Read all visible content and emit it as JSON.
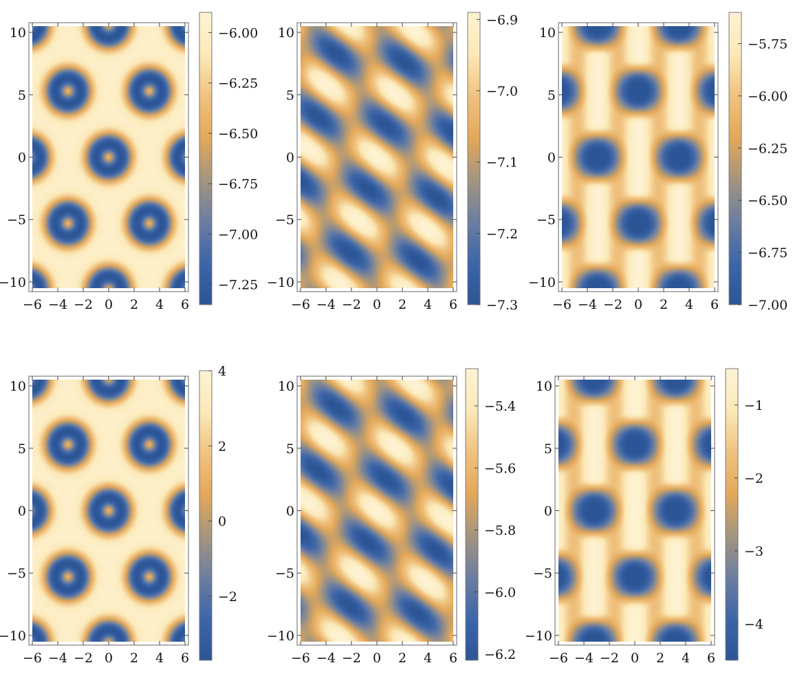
{
  "colormap": {
    "name": "sandy-terrain-like",
    "stops": [
      "#2c5596",
      "#3d66a8",
      "#6d7ea0",
      "#a4957f",
      "#e3a85a",
      "#efc27f",
      "#fce9b8",
      "#fdf3d3"
    ]
  },
  "chart_data": [
    {
      "type": "heatmap",
      "panel": 1,
      "xlim": [
        -6,
        6
      ],
      "ylim": [
        -10.5,
        10.5
      ],
      "xticks": [
        -6,
        -4,
        -2,
        0,
        2,
        4,
        6
      ],
      "yticks": [
        -10,
        -5,
        0,
        5,
        10
      ],
      "colorbar": {
        "min": -7.35,
        "max": -5.9,
        "ticks": [
          -6.0,
          -6.25,
          -6.5,
          -6.75,
          -7.0,
          -7.25
        ],
        "tick_labels": [
          "−6.00",
          "−6.25",
          "−6.50",
          "−6.75",
          "−7.00",
          "−7.25"
        ]
      },
      "pattern": "rings"
    },
    {
      "type": "heatmap",
      "panel": 2,
      "xlim": [
        -6,
        6
      ],
      "ylim": [
        -10.5,
        10.5
      ],
      "xticks": [
        -6,
        -4,
        -2,
        0,
        2,
        4,
        6
      ],
      "yticks": [
        -10,
        -5,
        0,
        5,
        10
      ],
      "colorbar": {
        "min": -7.3,
        "max": -6.89,
        "ticks": [
          -6.9,
          -7.0,
          -7.1,
          -7.2,
          -7.3
        ],
        "tick_labels": [
          "−6.9",
          "−7.0",
          "−7.1",
          "−7.2",
          "−7.3"
        ]
      },
      "pattern": "diagonal"
    },
    {
      "type": "heatmap",
      "panel": 3,
      "xlim": [
        -6,
        6
      ],
      "ylim": [
        -10.5,
        10.5
      ],
      "xticks": [
        -6,
        -4,
        -2,
        0,
        2,
        4,
        6
      ],
      "yticks": [
        -10,
        -5,
        0,
        5,
        10
      ],
      "colorbar": {
        "min": -7.0,
        "max": -5.6,
        "ticks": [
          -5.75,
          -6.0,
          -6.25,
          -6.5,
          -6.75,
          -7.0
        ],
        "tick_labels": [
          "−5.75",
          "−6.00",
          "−6.25",
          "−6.50",
          "−6.75",
          "−7.00"
        ]
      },
      "pattern": "dots"
    },
    {
      "type": "heatmap",
      "panel": 4,
      "xlim": [
        -6,
        6
      ],
      "ylim": [
        -10.5,
        10.5
      ],
      "xticks": [
        -6,
        -4,
        -2,
        0,
        2,
        4,
        6
      ],
      "yticks": [
        -10,
        -5,
        0,
        5,
        10
      ],
      "colorbar": {
        "min": -3.7,
        "max": 4.0,
        "ticks": [
          4,
          2,
          0,
          -2
        ],
        "tick_labels": [
          "4",
          "2",
          "0",
          "−2"
        ]
      },
      "pattern": "rings"
    },
    {
      "type": "heatmap",
      "panel": 5,
      "xlim": [
        -6,
        6
      ],
      "ylim": [
        -10.5,
        10.5
      ],
      "xticks": [
        -6,
        -4,
        -2,
        0,
        2,
        4,
        6
      ],
      "yticks": [
        -10,
        -5,
        0,
        5,
        10
      ],
      "colorbar": {
        "min": -6.22,
        "max": -5.28,
        "ticks": [
          -5.4,
          -5.6,
          -5.8,
          -6.0,
          -6.2
        ],
        "tick_labels": [
          "−5.4",
          "−5.6",
          "−5.8",
          "−6.0",
          "−6.2"
        ]
      },
      "pattern": "diagonal"
    },
    {
      "type": "heatmap",
      "panel": 6,
      "xlim": [
        -6,
        6
      ],
      "ylim": [
        -10.5,
        10.5
      ],
      "xticks": [
        -6,
        -4,
        -2,
        0,
        2,
        4,
        6
      ],
      "yticks": [
        -10,
        -5,
        0,
        5,
        10
      ],
      "colorbar": {
        "min": -4.5,
        "max": -0.5,
        "ticks": [
          -1,
          -2,
          -3,
          -4
        ],
        "tick_labels": [
          "−1",
          "−2",
          "−3",
          "−4"
        ]
      },
      "pattern": "dots"
    }
  ]
}
